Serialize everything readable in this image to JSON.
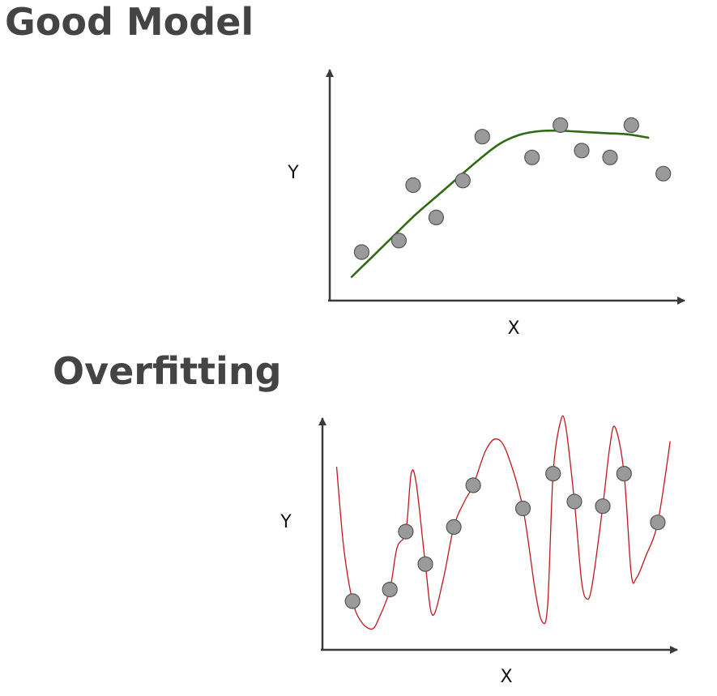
{
  "colors": {
    "heading": "#444444",
    "axis": "#3a3a3a",
    "point_fill": "#9a9a9a",
    "point_stroke": "#555555",
    "good_curve": "#2e6b12",
    "overfit_curve": "#c0181c"
  },
  "chart_data": [
    {
      "type": "scatter",
      "title": "Good Model",
      "xlabel": "X",
      "ylabel": "Y",
      "xlim": [
        0,
        100
      ],
      "ylim": [
        0,
        100
      ],
      "grid": false,
      "points": [
        {
          "x": 9,
          "y": 21
        },
        {
          "x": 19.5,
          "y": 26
        },
        {
          "x": 23.5,
          "y": 50
        },
        {
          "x": 30,
          "y": 36
        },
        {
          "x": 37.5,
          "y": 52
        },
        {
          "x": 43,
          "y": 71
        },
        {
          "x": 57,
          "y": 62
        },
        {
          "x": 65,
          "y": 76
        },
        {
          "x": 71,
          "y": 65
        },
        {
          "x": 79,
          "y": 62
        },
        {
          "x": 85,
          "y": 76
        },
        {
          "x": 94,
          "y": 55
        }
      ],
      "fit_curve": [
        [
          6,
          10
        ],
        [
          12,
          19
        ],
        [
          18,
          28
        ],
        [
          24,
          37
        ],
        [
          30,
          45
        ],
        [
          36,
          53
        ],
        [
          42,
          61
        ],
        [
          48,
          68
        ],
        [
          54,
          72
        ],
        [
          60,
          73.5
        ],
        [
          66,
          73.5
        ],
        [
          72,
          73
        ],
        [
          78,
          72.5
        ],
        [
          84,
          72
        ],
        [
          90,
          70.5
        ]
      ]
    },
    {
      "type": "scatter",
      "title": "Overfitting",
      "xlabel": "X",
      "ylabel": "Y",
      "xlim": [
        0,
        100
      ],
      "ylim": [
        0,
        100
      ],
      "grid": false,
      "points": [
        {
          "x": 8.5,
          "y": 21
        },
        {
          "x": 19,
          "y": 26
        },
        {
          "x": 23.5,
          "y": 51
        },
        {
          "x": 29,
          "y": 37
        },
        {
          "x": 37,
          "y": 53
        },
        {
          "x": 42.5,
          "y": 71
        },
        {
          "x": 56.5,
          "y": 61
        },
        {
          "x": 65,
          "y": 76
        },
        {
          "x": 71,
          "y": 64
        },
        {
          "x": 79,
          "y": 62
        },
        {
          "x": 85,
          "y": 76
        },
        {
          "x": 94.5,
          "y": 55
        }
      ],
      "fit_curve": [
        [
          4,
          79
        ],
        [
          6,
          44
        ],
        [
          8.5,
          21
        ],
        [
          11,
          12
        ],
        [
          14,
          9
        ],
        [
          16,
          14
        ],
        [
          19,
          26
        ],
        [
          21,
          44
        ],
        [
          23.5,
          51
        ],
        [
          25,
          76
        ],
        [
          26.5,
          71
        ],
        [
          29,
          37
        ],
        [
          31,
          15
        ],
        [
          34,
          30
        ],
        [
          37,
          53
        ],
        [
          40,
          64
        ],
        [
          42.5,
          71
        ],
        [
          46,
          86
        ],
        [
          49,
          91
        ],
        [
          52,
          85
        ],
        [
          56.5,
          61
        ],
        [
          60,
          25
        ],
        [
          62,
          12
        ],
        [
          63.5,
          20
        ],
        [
          65,
          76
        ],
        [
          67,
          98
        ],
        [
          68.5,
          97
        ],
        [
          71,
          64
        ],
        [
          73,
          30
        ],
        [
          74.5,
          22
        ],
        [
          76,
          28
        ],
        [
          79,
          62
        ],
        [
          81,
          88
        ],
        [
          82.5,
          96
        ],
        [
          85,
          76
        ],
        [
          87,
          33
        ],
        [
          88.5,
          31
        ],
        [
          91,
          40
        ],
        [
          94.5,
          55
        ],
        [
          98,
          90
        ]
      ]
    }
  ]
}
